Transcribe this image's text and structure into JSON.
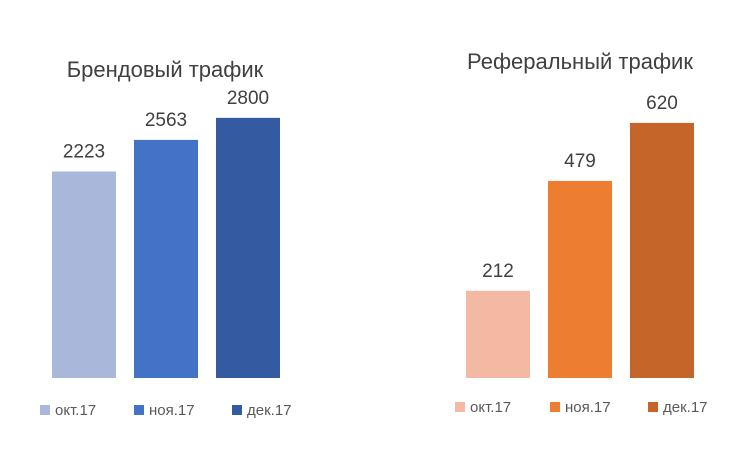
{
  "chart_data": [
    {
      "type": "bar",
      "title": "Брендовый трафик",
      "categories": [
        "окт.17",
        "ноя.17",
        "дек.17"
      ],
      "values": [
        2223,
        2563,
        2800
      ],
      "colors": [
        "#A9B7DA",
        "#4472C4",
        "#345AA1"
      ],
      "ylim": [
        0,
        3100
      ],
      "grid": false,
      "legend": "bottom"
    },
    {
      "type": "bar",
      "title": "Реферальный трафик",
      "categories": [
        "окт.17",
        "ноя.17",
        "дек.17"
      ],
      "values": [
        212,
        479,
        620
      ],
      "colors": [
        "#F4B9A3",
        "#ED7D31",
        "#C5652A"
      ],
      "ylim": [
        0,
        700
      ],
      "grid": false,
      "legend": "bottom"
    }
  ]
}
